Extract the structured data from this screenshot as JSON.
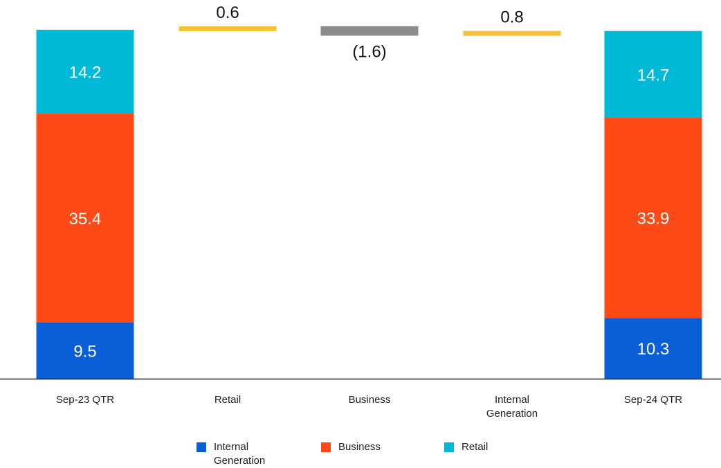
{
  "chart_data": {
    "type": "bar",
    "subtype": "waterfall-stacked",
    "title": "",
    "xlabel": "",
    "ylabel": "",
    "ylim": [
      0,
      59.1
    ],
    "grid": false,
    "legend_position": "bottom",
    "categories": [
      "Sep-23 QTR",
      "Retail",
      "Business",
      "Internal\nGeneration",
      "Sep-24 QTR"
    ],
    "components": [
      {
        "name": "Internal Generation",
        "color": "#0a5fd6"
      },
      {
        "name": "Business",
        "color": "#fd4a17"
      },
      {
        "name": "Retail",
        "color": "#00b9d6"
      }
    ],
    "totals": [
      {
        "category": "Sep-23 QTR",
        "values": {
          "Internal Generation": 9.5,
          "Business": 35.4,
          "Retail": 14.2
        },
        "labels": {
          "Internal Generation": "9.5",
          "Business": "35.4",
          "Retail": "14.2"
        }
      },
      {
        "category": "Sep-24 QTR",
        "values": {
          "Internal Generation": 10.3,
          "Business": 33.9,
          "Retail": 14.7
        },
        "labels": {
          "Internal Generation": "10.3",
          "Business": "33.9",
          "Retail": "14.7"
        }
      }
    ],
    "deltas": [
      {
        "category": "Retail",
        "value": 0.6,
        "label": "0.6",
        "color": "#f5c330"
      },
      {
        "category": "Business",
        "value": -1.6,
        "label": "(1.6)",
        "color": "#8c8c8c"
      },
      {
        "category": "Internal\nGeneration",
        "value": 0.8,
        "label": "0.8",
        "color": "#f5c330"
      }
    ],
    "legend": [
      {
        "label": "Internal\nGeneration",
        "color": "#0a5fd6"
      },
      {
        "label": "Business",
        "color": "#fd4a17"
      },
      {
        "label": "Retail",
        "color": "#00b9d6"
      }
    ]
  }
}
